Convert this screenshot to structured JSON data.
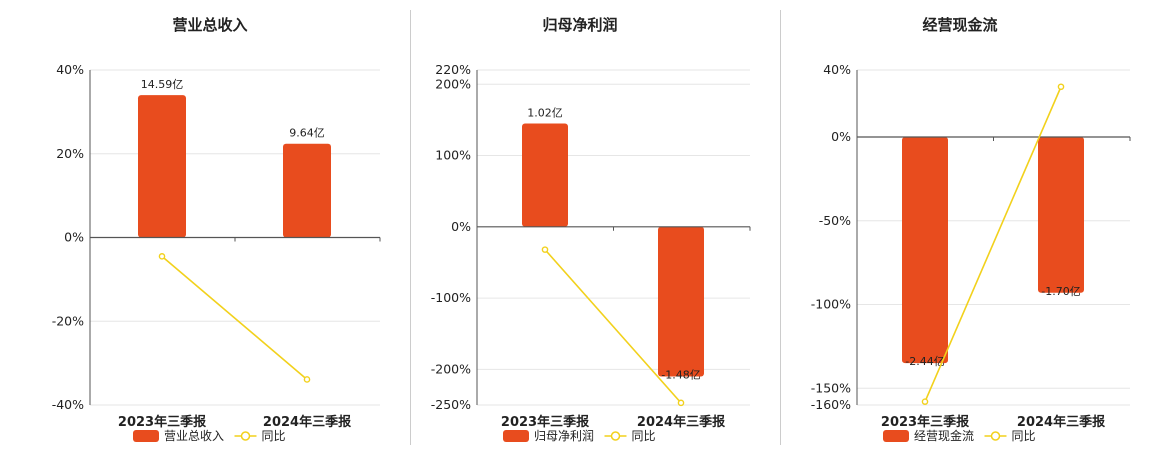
{
  "colors": {
    "bar": "#E84C1E",
    "line": "#F2D11C",
    "grid": "#E6E6E6",
    "axis": "#555555",
    "divider": "#CCCCCC"
  },
  "chart_data": [
    {
      "type": "bar",
      "title": "营业总收入",
      "categories": [
        "2023年三季报",
        "2024年三季报"
      ],
      "series": [
        {
          "name": "营业总收入",
          "type": "bar",
          "values": [
            34,
            22.4
          ],
          "labels": [
            "14.59亿",
            "9.64亿"
          ]
        },
        {
          "name": "同比",
          "type": "line",
          "values": [
            -4.5,
            -33.9
          ]
        }
      ],
      "yticks": [
        40,
        20,
        0,
        -20,
        -40
      ],
      "ytick_labels": [
        "40%",
        "20%",
        "0%",
        "-20%",
        "-40%"
      ],
      "ylim": [
        -40,
        40
      ]
    },
    {
      "type": "bar",
      "title": "归母净利润",
      "categories": [
        "2023年三季报",
        "2024年三季报"
      ],
      "series": [
        {
          "name": "归母净利润",
          "type": "bar",
          "values": [
            145,
            -210
          ],
          "labels": [
            "1.02亿",
            "-1.48亿"
          ]
        },
        {
          "name": "同比",
          "type": "line",
          "values": [
            -32,
            -247
          ]
        }
      ],
      "yticks": [
        220,
        200,
        100,
        0,
        -100,
        -200,
        -250
      ],
      "ytick_labels": [
        "220%",
        "200%",
        "100%",
        "0%",
        "-100%",
        "-200%",
        "-250%"
      ],
      "ylim": [
        -250,
        220
      ]
    },
    {
      "type": "bar",
      "title": "经营现金流",
      "categories": [
        "2023年三季报",
        "2024年三季报"
      ],
      "series": [
        {
          "name": "经营现金流",
          "type": "bar",
          "values": [
            -135,
            -93
          ],
          "labels": [
            "-2.44亿",
            "-1.70亿"
          ]
        },
        {
          "name": "同比",
          "type": "line",
          "values": [
            -158,
            30
          ]
        }
      ],
      "yticks": [
        40,
        0,
        -50,
        -100,
        -150,
        -160
      ],
      "ytick_labels": [
        "40%",
        "0%",
        "-50%",
        "-100%",
        "-150%",
        "-160%"
      ],
      "ylim": [
        -160,
        40
      ]
    }
  ]
}
